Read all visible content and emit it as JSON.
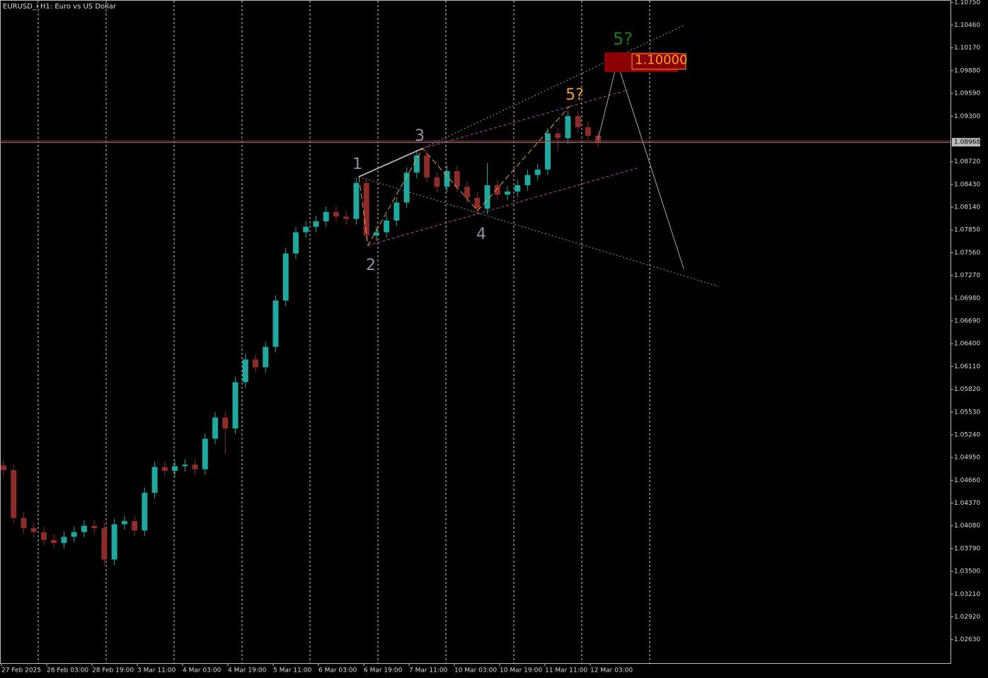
{
  "chart_data": {
    "type": "candlestick",
    "title": "EURUSD_i H1:  Euro vs US Dollar",
    "up_color": "#1fa89f",
    "down_color": "#8e2b2b",
    "open": [
      1.0485,
      1.0479,
      1.0418,
      1.0405,
      1.04,
      1.039,
      1.0386,
      1.0394,
      1.04,
      1.0408,
      1.0405,
      1.0365,
      1.041,
      1.0414,
      1.0402,
      1.045,
      1.0483,
      1.0478,
      1.0484,
      1.0486,
      1.048,
      1.0519,
      1.0546,
      1.0532,
      1.0591,
      1.062,
      1.061,
      1.0636,
      1.0695,
      1.0755,
      1.0782,
      1.0789,
      1.0796,
      1.0808,
      1.0802,
      1.0799,
      1.0845,
      1.0778,
      1.0782,
      1.0797,
      1.082,
      1.0858,
      1.088,
      1.0852,
      1.084,
      1.086,
      1.084,
      1.0826,
      1.0812,
      1.0842,
      1.083,
      1.0834,
      1.0842,
      1.0855,
      1.0862,
      1.0908,
      1.0902,
      1.093,
      1.0916,
      1.0905
    ],
    "high": [
      1.0492,
      1.0486,
      1.0425,
      1.0412,
      1.0407,
      1.0397,
      1.0401,
      1.0407,
      1.0415,
      1.0415,
      1.0412,
      1.0417,
      1.0421,
      1.0421,
      1.0457,
      1.049,
      1.049,
      1.0491,
      1.0493,
      1.0493,
      1.0526,
      1.0553,
      1.0553,
      1.0598,
      1.0627,
      1.0627,
      1.0643,
      1.0702,
      1.0762,
      1.0789,
      1.0796,
      1.0803,
      1.0815,
      1.0815,
      1.0809,
      1.0852,
      1.0852,
      1.0789,
      1.0804,
      1.0827,
      1.0865,
      1.0887,
      1.0887,
      1.0859,
      1.0867,
      1.0867,
      1.0847,
      1.0833,
      1.087,
      1.0849,
      1.0841,
      1.0849,
      1.0862,
      1.0869,
      1.0915,
      1.0915,
      1.0937,
      1.0937,
      1.0923,
      1.0912
    ],
    "low": [
      1.0472,
      1.0411,
      1.0398,
      1.0393,
      1.0383,
      1.0379,
      1.0379,
      1.0387,
      1.0393,
      1.0398,
      1.0358,
      1.0358,
      1.0403,
      1.0395,
      1.0395,
      1.0443,
      1.0471,
      1.0471,
      1.0477,
      1.0473,
      1.0473,
      1.0512,
      1.05,
      1.0525,
      1.0584,
      1.0603,
      1.0603,
      1.0629,
      1.0688,
      1.0748,
      1.0775,
      1.0782,
      1.0789,
      1.0795,
      1.0792,
      1.0792,
      1.0771,
      1.0771,
      1.0775,
      1.079,
      1.0813,
      1.0851,
      1.0845,
      1.0833,
      1.0833,
      1.0833,
      1.0819,
      1.0805,
      1.0805,
      1.0823,
      1.0823,
      1.0827,
      1.0835,
      1.0848,
      1.0855,
      1.0885,
      1.0895,
      1.0909,
      1.0898,
      1.089
    ],
    "close": [
      1.0479,
      1.0418,
      1.0405,
      1.04,
      1.039,
      1.0386,
      1.0394,
      1.04,
      1.0408,
      1.0405,
      1.0365,
      1.041,
      1.0414,
      1.0402,
      1.045,
      1.0483,
      1.0478,
      1.0484,
      1.0486,
      1.048,
      1.0519,
      1.0546,
      1.0532,
      1.0591,
      1.062,
      1.061,
      1.0636,
      1.0695,
      1.0755,
      1.0782,
      1.0789,
      1.0796,
      1.0808,
      1.0802,
      1.0799,
      1.0845,
      1.0778,
      1.0782,
      1.0797,
      1.082,
      1.0858,
      1.088,
      1.0852,
      1.084,
      1.086,
      1.084,
      1.0826,
      1.0812,
      1.0842,
      1.083,
      1.0834,
      1.0842,
      1.0855,
      1.0862,
      1.0908,
      1.0902,
      1.093,
      1.0916,
      1.0905,
      1.0897
    ],
    "x_labels": [
      "27 Feb 2025",
      "28 Feb 03:00",
      "28 Feb 19:00",
      "3 Mar 11:00",
      "4 Mar 03:00",
      "4 Mar 19:00",
      "5 Mar 11:00",
      "6 Mar 03:00",
      "6 Mar 19:00",
      "7 Mar 11:00",
      "10 Mar 03:00",
      "10 Mar 19:00",
      "11 Mar 11:00",
      "12 Mar 03:00"
    ],
    "ylim": [
      1.0233,
      1.1078
    ],
    "yticks": [
      {
        "value": 1.1075,
        "label": "1.10750"
      },
      {
        "value": 1.1046,
        "label": "1.10460"
      },
      {
        "value": 1.1017,
        "label": "1.10170"
      },
      {
        "value": 1.0988,
        "label": "1.09880"
      },
      {
        "value": 1.0959,
        "label": "1.09590"
      },
      {
        "value": 1.093,
        "label": "1.09300"
      },
      {
        "value": 1.0872,
        "label": "1.08720"
      },
      {
        "value": 1.0843,
        "label": "1.08430"
      },
      {
        "value": 1.0814,
        "label": "1.08140"
      },
      {
        "value": 1.0785,
        "label": "1.07850"
      },
      {
        "value": 1.0756,
        "label": "1.07560"
      },
      {
        "value": 1.0727,
        "label": "1.07270"
      },
      {
        "value": 1.0698,
        "label": "1.06980"
      },
      {
        "value": 1.0669,
        "label": "1.06690"
      },
      {
        "value": 1.064,
        "label": "1.06400"
      },
      {
        "value": 1.0611,
        "label": "1.06110"
      },
      {
        "value": 1.0582,
        "label": "1.05820"
      },
      {
        "value": 1.0553,
        "label": "1.05530"
      },
      {
        "value": 1.0524,
        "label": "1.05240"
      },
      {
        "value": 1.0495,
        "label": "1.04950"
      },
      {
        "value": 1.0466,
        "label": "1.04660"
      },
      {
        "value": 1.0437,
        "label": "1.04370"
      },
      {
        "value": 1.0408,
        "label": "1.04080"
      },
      {
        "value": 1.0379,
        "label": "1.03790"
      },
      {
        "value": 1.035,
        "label": "1.03500"
      },
      {
        "value": 1.0321,
        "label": "1.03210"
      },
      {
        "value": 1.0292,
        "label": "1.02920"
      },
      {
        "value": 1.0263,
        "label": "1.02630"
      }
    ],
    "current_price": {
      "value": 1.08968,
      "label": "1.08968"
    },
    "target": {
      "value": 1.1,
      "label": "1.10000"
    },
    "wave_labels": [
      "1",
      "2",
      "3",
      "4",
      "5?",
      "5?"
    ]
  }
}
